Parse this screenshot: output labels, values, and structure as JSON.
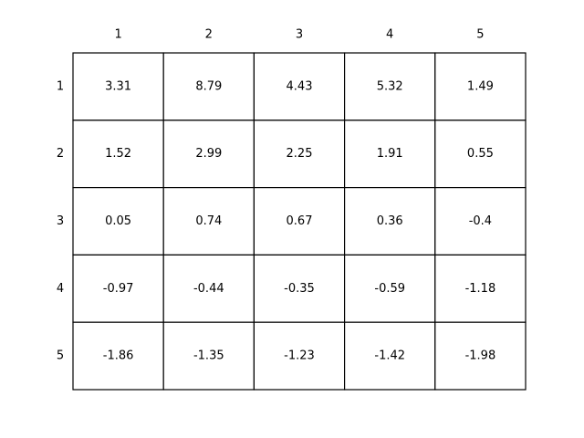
{
  "table": {
    "column_headers": [
      "1",
      "2",
      "3",
      "4",
      "5"
    ],
    "row_headers": [
      "1",
      "2",
      "3",
      "4",
      "5"
    ],
    "rows": [
      [
        3.31,
        8.79,
        4.43,
        5.32,
        1.49
      ],
      [
        1.52,
        2.99,
        2.25,
        1.91,
        0.55
      ],
      [
        0.05,
        0.74,
        0.67,
        0.36,
        -0.4
      ],
      [
        -0.97,
        -0.44,
        -0.35,
        -0.59,
        -1.18
      ],
      [
        -1.86,
        -1.35,
        -1.23,
        -1.42,
        -1.98
      ]
    ]
  }
}
